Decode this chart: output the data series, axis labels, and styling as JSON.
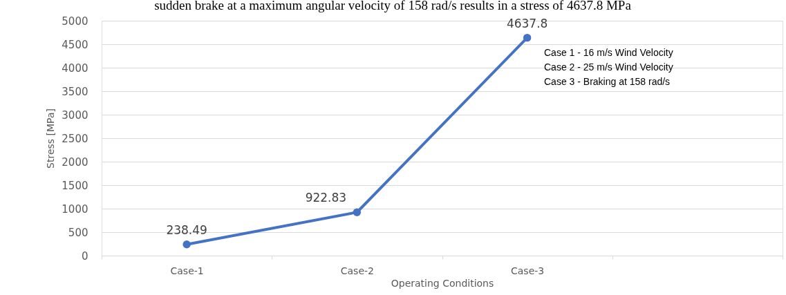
{
  "chart_data": {
    "type": "line",
    "annotations": [
      "sudden brake at a maximum angular velocity of 158 rad/s results in a stress of 4637.8 MPa",
      "Case 1 - 16 m/s Wind Velocity",
      "Case 2 - 25 m/s Wind Velocity",
      "Case 3 - Braking at 158 rad/s"
    ],
    "xlabel": "Operating Conditions",
    "ylabel": "Stress [MPa]",
    "categories": [
      "Case-1",
      "Case-2",
      "Case-3",
      null
    ],
    "series": [
      {
        "color": "#4472c4",
        "values": [
          238.49,
          922.83,
          4637.8,
          null
        ]
      }
    ],
    "ylim": [
      0,
      5000
    ],
    "yticks": [
      0,
      500,
      1000,
      1500,
      2000,
      2500,
      3000,
      3500,
      4000,
      4500,
      5000
    ],
    "grid": "y",
    "marker": "circle",
    "line_style": "solid",
    "data_labels": true
  }
}
